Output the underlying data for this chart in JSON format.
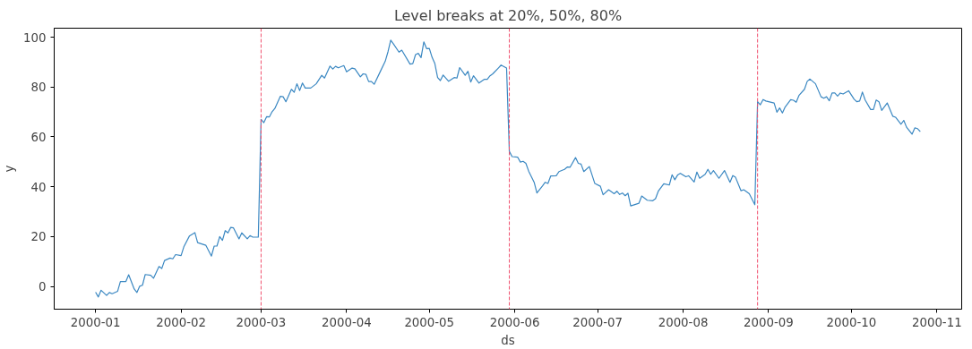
{
  "chart_data": {
    "type": "line",
    "title": "Level breaks at 20%, 50%, 80%",
    "xlabel": "ds",
    "ylabel": "y",
    "x": [
      "2000-01-01",
      "2000-01-02",
      "2000-01-03",
      "2000-01-05",
      "2000-01-06",
      "2000-01-07",
      "2000-01-09",
      "2000-01-10",
      "2000-01-12",
      "2000-01-13",
      "2000-01-15",
      "2000-01-16",
      "2000-01-17",
      "2000-01-18",
      "2000-01-19",
      "2000-01-21",
      "2000-01-22",
      "2000-01-24",
      "2000-01-25",
      "2000-01-26",
      "2000-01-28",
      "2000-01-29",
      "2000-01-30",
      "2000-02-01",
      "2000-02-02",
      "2000-02-04",
      "2000-02-06",
      "2000-02-07",
      "2000-02-10",
      "2000-02-12",
      "2000-02-13",
      "2000-02-14",
      "2000-02-15",
      "2000-02-16",
      "2000-02-17",
      "2000-02-18",
      "2000-02-19",
      "2000-02-20",
      "2000-02-22",
      "2000-02-23",
      "2000-02-25",
      "2000-02-26",
      "2000-02-27",
      "2000-02-29",
      "2000-03-01",
      "2000-03-02",
      "2000-03-03",
      "2000-03-04",
      "2000-03-05",
      "2000-03-06",
      "2000-03-08",
      "2000-03-09",
      "2000-03-10",
      "2000-03-12",
      "2000-03-13",
      "2000-03-14",
      "2000-03-15",
      "2000-03-16",
      "2000-03-17",
      "2000-03-19",
      "2000-03-21",
      "2000-03-23",
      "2000-03-24",
      "2000-03-26",
      "2000-03-27",
      "2000-03-28",
      "2000-03-29",
      "2000-03-31",
      "2000-04-01",
      "2000-04-03",
      "2000-04-04",
      "2000-04-06",
      "2000-04-07",
      "2000-04-08",
      "2000-04-09",
      "2000-04-10",
      "2000-04-11",
      "2000-04-13",
      "2000-04-15",
      "2000-04-16",
      "2000-04-17",
      "2000-04-18",
      "2000-04-20",
      "2000-04-21",
      "2000-04-24",
      "2000-04-25",
      "2000-04-26",
      "2000-04-27",
      "2000-04-28",
      "2000-04-29",
      "2000-04-30",
      "2000-05-01",
      "2000-05-02",
      "2000-05-03",
      "2000-05-04",
      "2000-05-05",
      "2000-05-06",
      "2000-05-08",
      "2000-05-10",
      "2000-05-11",
      "2000-05-12",
      "2000-05-14",
      "2000-05-15",
      "2000-05-16",
      "2000-05-17",
      "2000-05-19",
      "2000-05-21",
      "2000-05-22",
      "2000-05-23",
      "2000-05-24",
      "2000-05-26",
      "2000-05-27",
      "2000-05-29",
      "2000-05-30",
      "2000-05-31",
      "2000-06-02",
      "2000-06-03",
      "2000-06-04",
      "2000-06-05",
      "2000-06-06",
      "2000-06-08",
      "2000-06-09",
      "2000-06-11",
      "2000-06-12",
      "2000-06-13",
      "2000-06-14",
      "2000-06-16",
      "2000-06-17",
      "2000-06-19",
      "2000-06-20",
      "2000-06-21",
      "2000-06-23",
      "2000-06-24",
      "2000-06-25",
      "2000-06-26",
      "2000-06-28",
      "2000-06-30",
      "2000-07-02",
      "2000-07-03",
      "2000-07-05",
      "2000-07-07",
      "2000-07-08",
      "2000-07-09",
      "2000-07-10",
      "2000-07-11",
      "2000-07-12",
      "2000-07-13",
      "2000-07-16",
      "2000-07-17",
      "2000-07-19",
      "2000-07-21",
      "2000-07-22",
      "2000-07-23",
      "2000-07-25",
      "2000-07-27",
      "2000-07-28",
      "2000-07-29",
      "2000-07-30",
      "2000-07-31",
      "2000-08-02",
      "2000-08-03",
      "2000-08-05",
      "2000-08-06",
      "2000-08-07",
      "2000-08-09",
      "2000-08-10",
      "2000-08-11",
      "2000-08-12",
      "2000-08-14",
      "2000-08-16",
      "2000-08-18",
      "2000-08-19",
      "2000-08-20",
      "2000-08-22",
      "2000-08-23",
      "2000-08-25",
      "2000-08-27",
      "2000-08-28",
      "2000-08-29",
      "2000-08-30",
      "2000-08-31",
      "2000-09-03",
      "2000-09-04",
      "2000-09-05",
      "2000-09-06",
      "2000-09-07",
      "2000-09-09",
      "2000-09-10",
      "2000-09-11",
      "2000-09-12",
      "2000-09-14",
      "2000-09-15",
      "2000-09-16",
      "2000-09-18",
      "2000-09-20",
      "2000-09-21",
      "2000-09-22",
      "2000-09-23",
      "2000-09-24",
      "2000-09-25",
      "2000-09-26",
      "2000-09-27",
      "2000-09-28",
      "2000-09-30",
      "2000-10-02",
      "2000-10-03",
      "2000-10-04",
      "2000-10-05",
      "2000-10-06",
      "2000-10-08",
      "2000-10-09",
      "2000-10-10",
      "2000-10-11",
      "2000-10-12",
      "2000-10-14",
      "2000-10-16",
      "2000-10-17",
      "2000-10-19",
      "2000-10-20",
      "2000-10-21",
      "2000-10-23",
      "2000-10-24",
      "2000-10-25",
      "2000-10-26"
    ],
    "series": [
      {
        "color": "#3b88c2",
        "values": [
          -2.3,
          -4.2,
          -1.5,
          -3.6,
          -2.4,
          -2.9,
          -1.9,
          2.0,
          2.0,
          4.7,
          -1.0,
          -2.4,
          0.1,
          0.5,
          4.8,
          4.5,
          3.3,
          8.0,
          7.2,
          10.4,
          11.4,
          11.1,
          12.8,
          12.4,
          15.9,
          20.2,
          21.6,
          17.6,
          16.5,
          12.2,
          16.2,
          16.2,
          20.0,
          18.5,
          22.4,
          21.5,
          23.7,
          23.5,
          19.1,
          21.5,
          19.1,
          20.4,
          19.8,
          19.8,
          67.0,
          65.7,
          68.1,
          68.0,
          70.1,
          71.4,
          76.3,
          76.1,
          74.1,
          79.1,
          77.9,
          81.3,
          78.6,
          81.6,
          79.6,
          79.6,
          81.3,
          84.7,
          83.6,
          88.4,
          87.2,
          88.3,
          87.7,
          88.6,
          86.1,
          87.6,
          87.3,
          84.1,
          85.3,
          85.1,
          82.2,
          82.2,
          81.1,
          85.7,
          90.3,
          94.1,
          98.8,
          97.3,
          94.0,
          94.8,
          89.2,
          89.4,
          93.0,
          93.5,
          91.8,
          98.1,
          95.4,
          95.5,
          91.9,
          89.4,
          83.8,
          82.6,
          84.8,
          82.3,
          83.8,
          83.6,
          87.8,
          84.7,
          86.3,
          82.0,
          84.5,
          81.6,
          83.1,
          83.1,
          84.5,
          85.3,
          87.6,
          88.8,
          87.6,
          54.2,
          52.1,
          51.9,
          49.9,
          50.2,
          49.4,
          46.3,
          41.8,
          37.5,
          40.3,
          41.8,
          41.3,
          44.3,
          44.4,
          46.1,
          47.0,
          47.9,
          47.8,
          51.7,
          49.4,
          49.1,
          46.1,
          48.1,
          41.3,
          40.2,
          36.8,
          38.8,
          37.2,
          38.2,
          36.9,
          37.5,
          36.4,
          37.4,
          32.3,
          33.4,
          36.3,
          34.6,
          34.4,
          35.2,
          38.2,
          41.2,
          40.7,
          44.8,
          42.8,
          44.7,
          45.4,
          44.0,
          44.4,
          41.9,
          45.9,
          43.4,
          45.0,
          47.0,
          45.0,
          46.5,
          43.4,
          46.5,
          41.8,
          44.5,
          43.8,
          38.4,
          38.8,
          37.2,
          32.8,
          74.1,
          72.9,
          75.0,
          74.4,
          73.6,
          69.9,
          71.6,
          69.6,
          72.0,
          74.9,
          74.7,
          73.9,
          76.6,
          79.1,
          82.3,
          83.2,
          81.3,
          76.1,
          75.5,
          76.1,
          74.5,
          77.6,
          77.6,
          76.4,
          77.6,
          77.2,
          78.5,
          75.1,
          74.1,
          74.4,
          78.0,
          74.8,
          71.0,
          71.0,
          74.8,
          74.1,
          70.6,
          73.6,
          68.3,
          67.9,
          65.1,
          66.6,
          63.9,
          61.1,
          63.6,
          63.3,
          62.1
        ]
      }
    ],
    "xlim": [
      "1999-12-17",
      "2000-11-10"
    ],
    "xticks": [
      {
        "value": "2000-01-01",
        "label": "2000-01"
      },
      {
        "value": "2000-02-01",
        "label": "2000-02"
      },
      {
        "value": "2000-03-01",
        "label": "2000-03"
      },
      {
        "value": "2000-04-01",
        "label": "2000-04"
      },
      {
        "value": "2000-05-01",
        "label": "2000-05"
      },
      {
        "value": "2000-06-01",
        "label": "2000-06"
      },
      {
        "value": "2000-07-01",
        "label": "2000-07"
      },
      {
        "value": "2000-08-01",
        "label": "2000-08"
      },
      {
        "value": "2000-09-01",
        "label": "2000-09"
      },
      {
        "value": "2000-10-01",
        "label": "2000-10"
      },
      {
        "value": "2000-11-01",
        "label": "2000-11"
      }
    ],
    "ylim": [
      -9.1,
      103.6
    ],
    "yticks": [
      0,
      20,
      40,
      60,
      80,
      100
    ],
    "ref_lines": [
      {
        "axis": "x",
        "value": "2000-03-01",
        "color": "#f0506e",
        "line_style": "dashed"
      },
      {
        "axis": "x",
        "value": "2000-05-30",
        "color": "#f0506e",
        "line_style": "dashed"
      },
      {
        "axis": "x",
        "value": "2000-08-28",
        "color": "#f0506e",
        "line_style": "dashed"
      }
    ],
    "grid": false,
    "marker": "none",
    "line_style": "solid"
  }
}
